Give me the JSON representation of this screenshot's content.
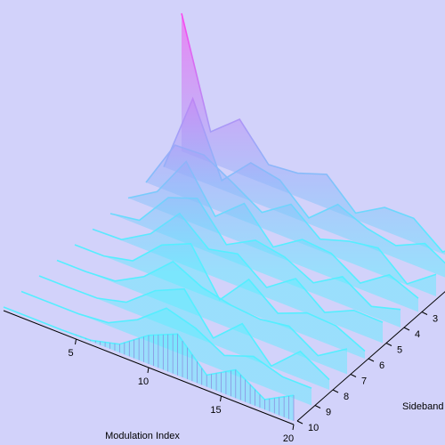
{
  "chart_data": {
    "type": "surface",
    "xlabel": "Modulation Index",
    "ylabel": "Sideband",
    "x": [
      0,
      2,
      4,
      6,
      8,
      10,
      12,
      14,
      16,
      18,
      20
    ],
    "sidebands": [
      0,
      1,
      2,
      3,
      4,
      5,
      6,
      7,
      8,
      9,
      10
    ],
    "z": [
      [
        1,
        0.224,
        0.397,
        0.151,
        0.172,
        0.246,
        0.048,
        0.171,
        0.175,
        0.014,
        0.167
      ],
      [
        0,
        0.577,
        0.066,
        0.277,
        0.235,
        0.043,
        0.223,
        0.133,
        0.09,
        0.188,
        0.067
      ],
      [
        0,
        0.353,
        0.364,
        0.243,
        0.113,
        0.255,
        0.085,
        0.152,
        0.186,
        0.008,
        0.16
      ],
      [
        0,
        0.129,
        0.43,
        0.115,
        0.291,
        0.058,
        0.195,
        0.177,
        0.044,
        0.187,
        0.099
      ],
      [
        0,
        0.034,
        0.281,
        0.358,
        0.105,
        0.22,
        0.182,
        0.076,
        0.203,
        0.07,
        0.131
      ],
      [
        0,
        0.007,
        0.132,
        0.362,
        0.186,
        0.234,
        0.073,
        0.22,
        0.057,
        0.155,
        0.151
      ],
      [
        0,
        0.001,
        0.049,
        0.246,
        0.338,
        0.014,
        0.244,
        0.081,
        0.167,
        0.156,
        0.055
      ],
      [
        0,
        0,
        0.015,
        0.13,
        0.321,
        0.217,
        0.17,
        0.151,
        0.183,
        0.052,
        0.184
      ],
      [
        0,
        0,
        0.004,
        0.057,
        0.223,
        0.318,
        0.045,
        0.232,
        0.007,
        0.196,
        0.074
      ],
      [
        0,
        0,
        0.001,
        0.021,
        0.126,
        0.292,
        0.23,
        0.114,
        0.19,
        0.125,
        0.125
      ],
      [
        0,
        0,
        0,
        0.007,
        0.061,
        0.208,
        0.3,
        0.085,
        0.206,
        0.073,
        0.186
      ]
    ],
    "xlim": [
      0,
      20
    ],
    "ylim": [
      0,
      10
    ],
    "zlim": [
      0,
      1
    ],
    "xticks": [
      5,
      10,
      15,
      20
    ],
    "yticks": [
      3,
      4,
      5,
      6,
      7,
      8,
      9,
      10
    ],
    "background": "#d2d2fa",
    "color_low": "#55eeff",
    "color_high": "#ff44ee"
  }
}
